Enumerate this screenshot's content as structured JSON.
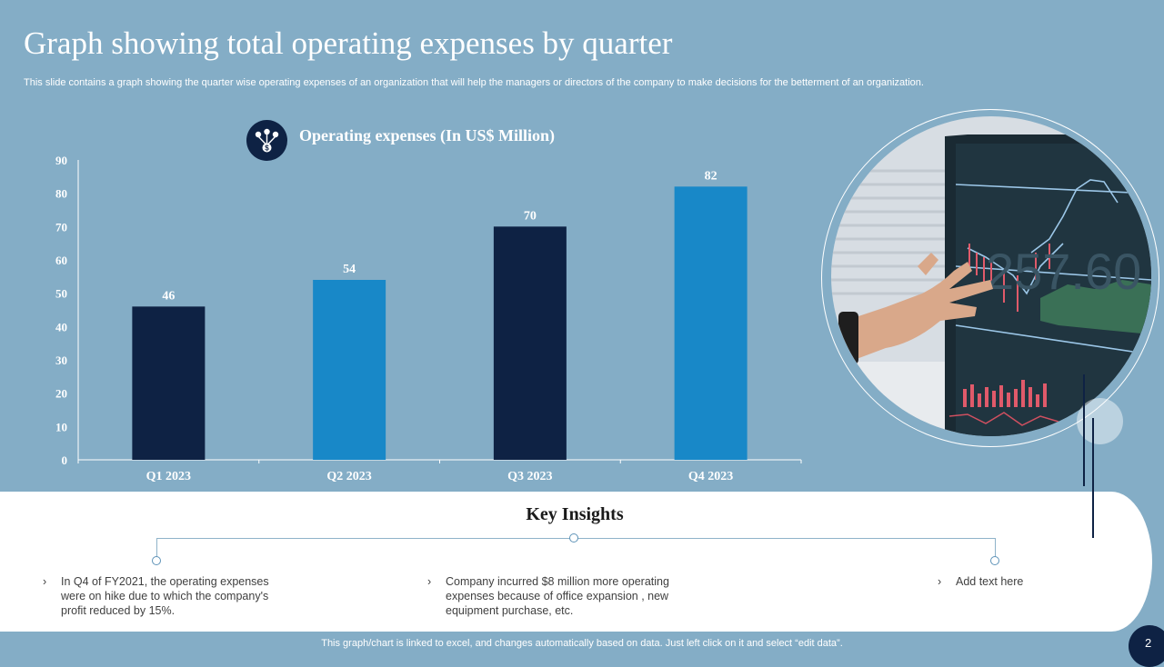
{
  "slide": {
    "title": "Graph showing total operating expenses by quarter",
    "subtitle": "This slide contains a graph showing the quarter wise operating expenses of an organization that will help the managers or directors of the company to make decisions for the betterment of an organization.",
    "footer": "This graph/chart is linked to excel, and changes automatically based on data. Just left click on it and select “edit data”.",
    "page_number": "2"
  },
  "colors": {
    "background": "#84adc6",
    "bar_dark": "#0e2244",
    "bar_light": "#1888c8",
    "panel": "#ffffff"
  },
  "legend": {
    "icon": "money-network-icon"
  },
  "chart_data": {
    "type": "bar",
    "title": "Operating expenses (In US$ Million)",
    "categories": [
      "Q1 2023",
      "Q2 2023",
      "Q3 2023",
      "Q4 2023"
    ],
    "series": [
      {
        "name": "Operating expenses (In US$ Million)",
        "values": [
          46,
          54,
          70,
          82
        ]
      }
    ],
    "bar_colors": [
      "#0e2244",
      "#1888c8",
      "#0e2244",
      "#1888c8"
    ],
    "data_labels": true,
    "ylim": [
      0,
      90
    ],
    "yticks": [
      0,
      10,
      20,
      30,
      40,
      50,
      60,
      70,
      80,
      90
    ],
    "grid": false,
    "legend": "top"
  },
  "key_insights": {
    "title": "Key Insights",
    "items": [
      {
        "text": "In Q4 of FY2021, the operating expenses were on hike  due to which the  company's profit reduced by 15%."
      },
      {
        "text": "Company incurred  $8 million more operating expenses because of  office expansion , new equipment purchase, etc."
      },
      {
        "text": "Add text here"
      }
    ]
  }
}
